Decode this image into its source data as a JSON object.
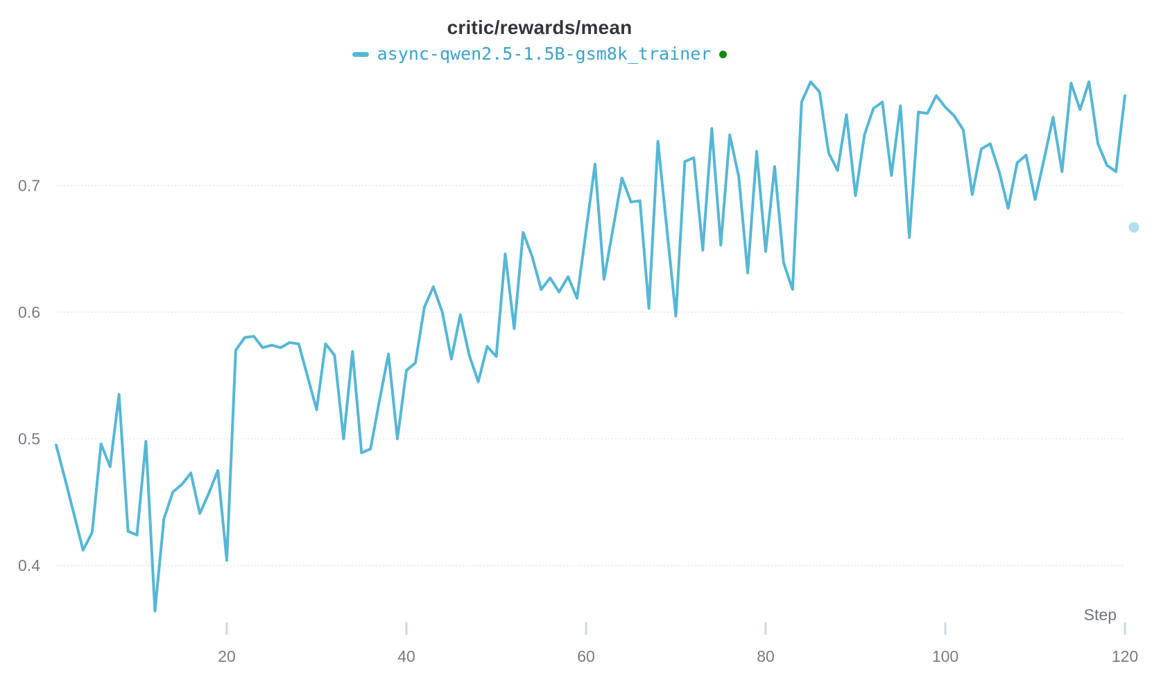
{
  "header": {
    "title": "critic/rewards/mean"
  },
  "legend": {
    "series_label": "async-qwen2.5-1.5B-gsm8k_trainer",
    "swatch_color": "#56b7d5",
    "label_color": "#3aa2cc",
    "status_dot_color": "#128a12"
  },
  "colors": {
    "line": "#56b7d5",
    "grid": "#dfe7ec",
    "tick": "#ccd9e2",
    "background": "#ffffff",
    "isolated_point": "#56b7d5"
  },
  "chart_data": {
    "type": "line",
    "title": "critic/rewards/mean",
    "xlabel": "Step",
    "ylabel": "",
    "grid": true,
    "legend_position": "top-center",
    "x_ticks": [
      20,
      40,
      60,
      80,
      100,
      120
    ],
    "y_ticks": [
      0.4,
      0.5,
      0.6,
      0.7
    ],
    "xlim": [
      1,
      122
    ],
    "ylim": [
      0.33,
      0.8
    ],
    "series": [
      {
        "name": "async-qwen2.5-1.5B-gsm8k_trainer",
        "color": "#56b7d5",
        "step_start": 1,
        "values": [
          0.495,
          0.468,
          0.44,
          0.412,
          0.426,
          0.496,
          0.478,
          0.535,
          0.427,
          0.424,
          0.498,
          0.364,
          0.437,
          0.458,
          0.464,
          0.473,
          0.441,
          0.457,
          0.475,
          0.404,
          0.57,
          0.58,
          0.581,
          0.572,
          0.574,
          0.572,
          0.576,
          0.575,
          0.549,
          0.523,
          0.575,
          0.566,
          0.5,
          0.569,
          0.489,
          0.492,
          0.53,
          0.567,
          0.5,
          0.554,
          0.56,
          0.604,
          0.62,
          0.6,
          0.563,
          0.598,
          0.566,
          0.545,
          0.573,
          0.565,
          0.646,
          0.587,
          0.663,
          0.644,
          0.618,
          0.627,
          0.616,
          0.628,
          0.611,
          0.664,
          0.717,
          0.626,
          0.666,
          0.706,
          0.687,
          0.688,
          0.603,
          0.735,
          0.666,
          0.597,
          0.719,
          0.722,
          0.649,
          0.745,
          0.653,
          0.74,
          0.707,
          0.631,
          0.727,
          0.648,
          0.715,
          0.639,
          0.618,
          0.766,
          0.782,
          0.774,
          0.726,
          0.712,
          0.756,
          0.692,
          0.74,
          0.761,
          0.766,
          0.708,
          0.763,
          0.659,
          0.758,
          0.757,
          0.771,
          0.762,
          0.755,
          0.744,
          0.693,
          0.729,
          0.733,
          0.711,
          0.682,
          0.718,
          0.724,
          0.689,
          0.721,
          0.754,
          0.711,
          0.781,
          0.76,
          0.782,
          0.733,
          0.716,
          0.711,
          0.771
        ]
      }
    ],
    "isolated_point": {
      "step": 121,
      "value": 0.667,
      "style": "faded"
    }
  }
}
